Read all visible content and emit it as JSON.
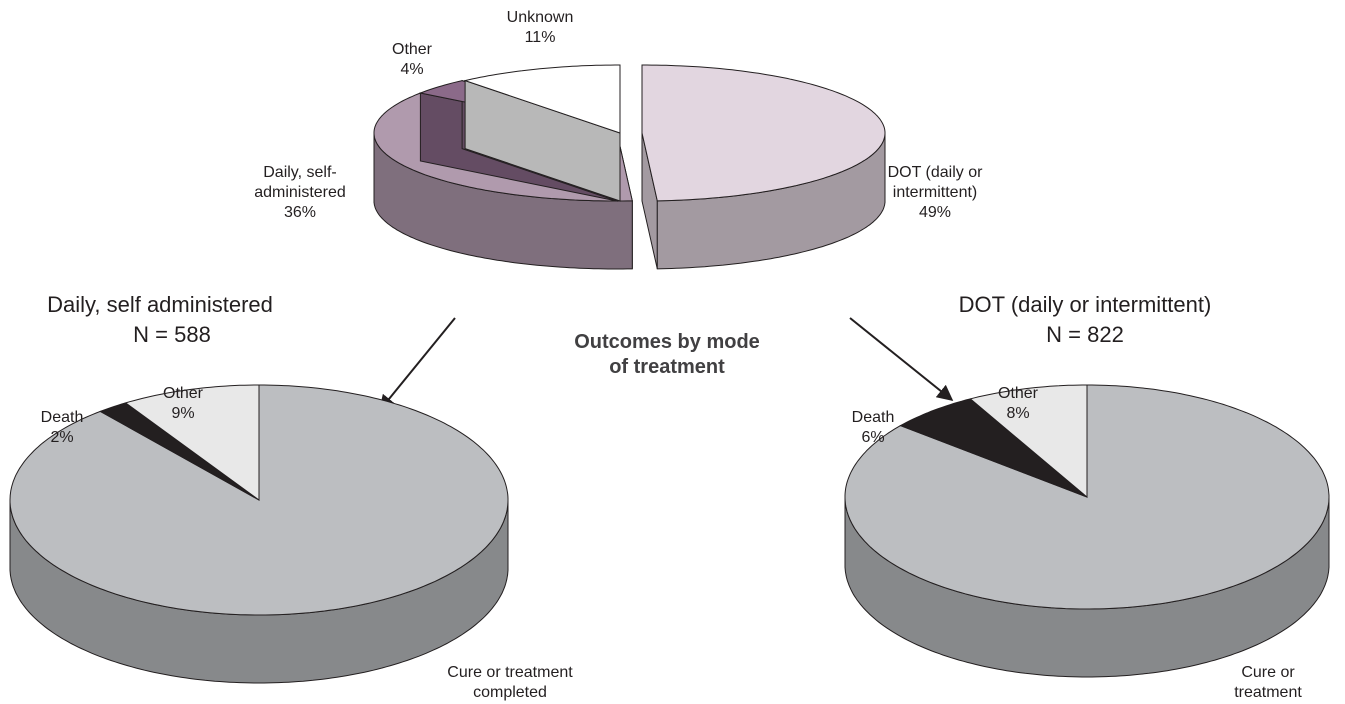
{
  "annotation": "Outcomes by mode\nof treatment",
  "chart_data": [
    {
      "type": "pie",
      "categories": [
        "DOT (daily or\nintermittent)",
        "Daily, self-\nadministered",
        "Other",
        "Unknown"
      ],
      "values": [
        49,
        36,
        4,
        11
      ],
      "value_labels": [
        "49%",
        "36%",
        "4%",
        "11%"
      ],
      "colors": [
        "#e2d6e0",
        "#b09aad",
        "#8b6a89",
        "#ffffff"
      ]
    },
    {
      "type": "pie",
      "title": "Daily, self administered",
      "subtitle": "N = 588",
      "categories": [
        "Cure or treatment\ncompleted",
        "Death",
        "Other"
      ],
      "values": [
        89,
        2,
        9
      ],
      "value_labels": [
        "89%",
        "2%",
        "9%"
      ],
      "colors": [
        "#bcbec1",
        "#231f20",
        "#e8e8e8"
      ]
    },
    {
      "type": "pie",
      "title": "DOT (daily or intermittent)",
      "subtitle": "N = 822",
      "categories": [
        "Cure or treatment\ncompleted",
        "Death",
        "Other"
      ],
      "values": [
        86,
        6,
        8
      ],
      "value_labels": [
        "86%",
        "6%",
        "8%"
      ],
      "colors": [
        "#bcbec1",
        "#231f20",
        "#e8e8e8"
      ]
    }
  ]
}
